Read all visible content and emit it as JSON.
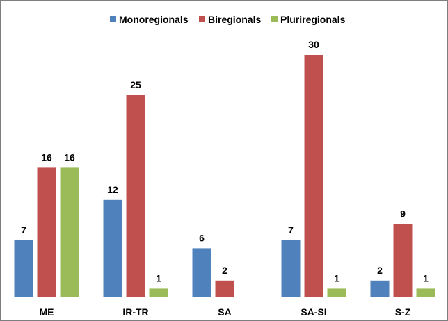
{
  "chart_data": {
    "type": "bar",
    "categories": [
      "ME",
      "IR-TR",
      "SA",
      "SA-SI",
      "S-Z"
    ],
    "series": [
      {
        "name": "Monoregionals",
        "color": "#4f81bd",
        "values": [
          7,
          12,
          6,
          7,
          2
        ]
      },
      {
        "name": "Biregionals",
        "color": "#c0504d",
        "values": [
          16,
          25,
          2,
          30,
          9
        ]
      },
      {
        "name": "Pluriregionals",
        "color": "#9bbb59",
        "values": [
          16,
          1,
          null,
          1,
          1
        ]
      }
    ],
    "title": "",
    "xlabel": "",
    "ylabel": "",
    "ylim": [
      0,
      32
    ],
    "grid": false,
    "legend": "top-center",
    "data_labels": true
  }
}
